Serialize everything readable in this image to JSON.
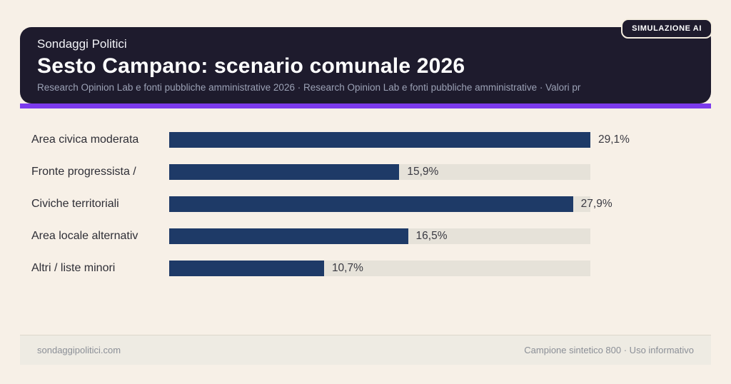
{
  "badge": {
    "label": "SIMULAZIONE AI"
  },
  "header": {
    "kicker": "Sondaggi Politici",
    "title": "Sesto Campano: scenario comunale 2026",
    "subtitle": "Research Opinion Lab e fonti pubbliche amministrative 2026 · Research Opinion Lab e fonti pubbliche amministrative · Valori pr"
  },
  "chart_data": {
    "type": "bar",
    "orientation": "horizontal",
    "title": "Sesto Campano: scenario comunale 2026",
    "xlabel": "",
    "ylabel": "",
    "categories": [
      "Area civica moderata",
      "Fronte progressista /",
      "Civiche territoriali",
      "Area locale alternativ",
      "Altri / liste minori"
    ],
    "values": [
      29.1,
      15.9,
      27.9,
      16.5,
      10.7
    ],
    "value_labels": [
      "29,1%",
      "15,9%",
      "27,9%",
      "16,5%",
      "10,7%"
    ],
    "xlim": [
      0,
      29.1
    ],
    "grid": false,
    "legend": false,
    "bar_color": "#1e3a67",
    "track_color": "#e6e2d9"
  },
  "footer": {
    "left": "sondaggipolitici.com",
    "right": "Campione sintetico 800 · Uso informativo"
  },
  "colors": {
    "accent": "#7c3aed",
    "card_bg": "#1e1b2d",
    "page_bg": "#f7f0e7"
  }
}
